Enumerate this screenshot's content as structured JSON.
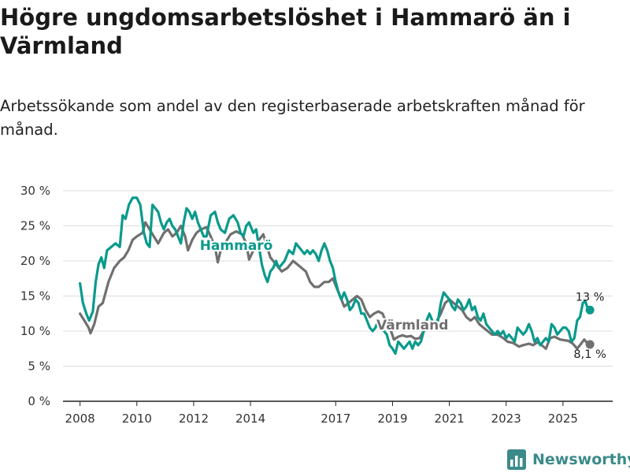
{
  "title": "Högre ungdomsarbetslöshet i Hammarö än i Värmland",
  "subtitle": "Arbetssökande som andel av den registerbaserade arbetskraften månad för månad.",
  "brand": {
    "name": "Newsworthy",
    "icon": "bar-chart-icon"
  },
  "chart_data": {
    "type": "line",
    "ylabel": "",
    "xlabel": "",
    "ylim": [
      0,
      30
    ],
    "xlim": [
      2007.4,
      2026.75
    ],
    "y_ticks": [
      0,
      5,
      10,
      15,
      20,
      25,
      30
    ],
    "y_tick_labels": [
      "0 %",
      "5 %",
      "10 %",
      "15 %",
      "20 %",
      "25 %",
      "30 %"
    ],
    "x_ticks": [
      2008,
      2010,
      2012,
      2014,
      2017,
      2019,
      2021,
      2023,
      2025
    ],
    "x_tick_labels": [
      "2008",
      "2010",
      "2012",
      "2014",
      "2017",
      "2019",
      "2021",
      "2023",
      "2025"
    ],
    "grid": "horizontal",
    "series": [
      {
        "name": "Värmland",
        "color": "#707070",
        "label": "Värmland",
        "end_label": "8,1 %",
        "end_value": 8.1,
        "points": [
          [
            2008.0,
            12.5
          ],
          [
            2008.15,
            11.5
          ],
          [
            2008.3,
            10.5
          ],
          [
            2008.37,
            9.7
          ],
          [
            2008.5,
            11.0
          ],
          [
            2008.65,
            13.5
          ],
          [
            2008.8,
            14.0
          ],
          [
            2009.0,
            17.0
          ],
          [
            2009.2,
            19.0
          ],
          [
            2009.4,
            20.0
          ],
          [
            2009.55,
            20.5
          ],
          [
            2009.7,
            21.5
          ],
          [
            2009.85,
            23.0
          ],
          [
            2010.0,
            23.5
          ],
          [
            2010.2,
            24.0
          ],
          [
            2010.3,
            25.5
          ],
          [
            2010.45,
            24.5
          ],
          [
            2010.6,
            23.5
          ],
          [
            2010.75,
            22.5
          ],
          [
            2010.95,
            24.0
          ],
          [
            2011.1,
            24.5
          ],
          [
            2011.25,
            23.5
          ],
          [
            2011.4,
            24.0
          ],
          [
            2011.55,
            25.0
          ],
          [
            2011.7,
            23.5
          ],
          [
            2011.8,
            21.5
          ],
          [
            2011.95,
            23.0
          ],
          [
            2012.1,
            24.0
          ],
          [
            2012.25,
            24.5
          ],
          [
            2012.45,
            24.8
          ],
          [
            2012.6,
            23.5
          ],
          [
            2012.75,
            22.0
          ],
          [
            2012.85,
            19.8
          ],
          [
            2012.95,
            21.5
          ],
          [
            2013.1,
            22.5
          ],
          [
            2013.3,
            23.8
          ],
          [
            2013.5,
            24.2
          ],
          [
            2013.7,
            23.8
          ],
          [
            2013.85,
            22.5
          ],
          [
            2013.95,
            20.2
          ],
          [
            2014.1,
            21.5
          ],
          [
            2014.3,
            23.0
          ],
          [
            2014.45,
            23.8
          ],
          [
            2014.55,
            22.5
          ],
          [
            2014.7,
            20.5
          ],
          [
            2014.9,
            19.5
          ],
          [
            2015.1,
            18.5
          ],
          [
            2015.3,
            19.0
          ],
          [
            2015.5,
            20.0
          ],
          [
            2015.65,
            19.5
          ],
          [
            2015.8,
            19.0
          ],
          [
            2015.95,
            18.5
          ],
          [
            2016.1,
            17.0
          ],
          [
            2016.25,
            16.3
          ],
          [
            2016.4,
            16.3
          ],
          [
            2016.6,
            17.0
          ],
          [
            2016.75,
            17.0
          ],
          [
            2016.9,
            17.5
          ],
          [
            2017.05,
            16.0
          ],
          [
            2017.2,
            14.5
          ],
          [
            2017.3,
            13.5
          ],
          [
            2017.45,
            14.0
          ],
          [
            2017.6,
            14.5
          ],
          [
            2017.75,
            15.0
          ],
          [
            2017.9,
            14.5
          ],
          [
            2018.05,
            13.0
          ],
          [
            2018.2,
            12.0
          ],
          [
            2018.35,
            12.5
          ],
          [
            2018.5,
            12.8
          ],
          [
            2018.65,
            12.5
          ],
          [
            2018.8,
            11.0
          ],
          [
            2018.95,
            10.0
          ],
          [
            2019.05,
            8.8
          ],
          [
            2019.2,
            9.2
          ],
          [
            2019.35,
            9.4
          ],
          [
            2019.5,
            9.2
          ],
          [
            2019.65,
            9.3
          ],
          [
            2019.8,
            8.9
          ],
          [
            2019.95,
            9.0
          ],
          [
            2020.1,
            10.0
          ],
          [
            2020.3,
            10.5
          ],
          [
            2020.5,
            11.0
          ],
          [
            2020.7,
            12.5
          ],
          [
            2020.85,
            14.0
          ],
          [
            2021.0,
            14.5
          ],
          [
            2021.15,
            14.0
          ],
          [
            2021.3,
            13.5
          ],
          [
            2021.45,
            13.0
          ],
          [
            2021.6,
            12.0
          ],
          [
            2021.75,
            11.5
          ],
          [
            2021.9,
            12.0
          ],
          [
            2022.05,
            11.0
          ],
          [
            2022.2,
            10.5
          ],
          [
            2022.35,
            10.0
          ],
          [
            2022.5,
            9.5
          ],
          [
            2022.7,
            9.5
          ],
          [
            2022.9,
            9.0
          ],
          [
            2023.05,
            8.5
          ],
          [
            2023.25,
            8.3
          ],
          [
            2023.45,
            7.8
          ],
          [
            2023.6,
            8.0
          ],
          [
            2023.8,
            8.2
          ],
          [
            2023.95,
            8.0
          ],
          [
            2024.1,
            8.4
          ],
          [
            2024.25,
            8.0
          ],
          [
            2024.4,
            7.5
          ],
          [
            2024.55,
            9.0
          ],
          [
            2024.7,
            9.2
          ],
          [
            2024.9,
            8.8
          ],
          [
            2025.05,
            8.7
          ],
          [
            2025.2,
            8.6
          ],
          [
            2025.35,
            8.2
          ],
          [
            2025.5,
            7.5
          ],
          [
            2025.6,
            8.0
          ],
          [
            2025.75,
            8.8
          ],
          [
            2025.85,
            8.3
          ],
          [
            2025.95,
            8.1
          ]
        ]
      },
      {
        "name": "Hammarö",
        "color": "#0a9a8c",
        "label": "Hammarö",
        "end_label": "13 %",
        "end_value": 13.0,
        "points": [
          [
            2008.0,
            16.8
          ],
          [
            2008.1,
            14.0
          ],
          [
            2008.22,
            12.5
          ],
          [
            2008.32,
            11.5
          ],
          [
            2008.45,
            12.8
          ],
          [
            2008.55,
            17.0
          ],
          [
            2008.65,
            19.5
          ],
          [
            2008.75,
            20.5
          ],
          [
            2008.85,
            19.0
          ],
          [
            2008.95,
            21.5
          ],
          [
            2009.1,
            22.0
          ],
          [
            2009.25,
            22.5
          ],
          [
            2009.4,
            22.0
          ],
          [
            2009.5,
            26.5
          ],
          [
            2009.6,
            26.0
          ],
          [
            2009.72,
            28.0
          ],
          [
            2009.85,
            29.0
          ],
          [
            2010.0,
            29.0
          ],
          [
            2010.12,
            28.0
          ],
          [
            2010.25,
            24.0
          ],
          [
            2010.35,
            22.5
          ],
          [
            2010.45,
            22.0
          ],
          [
            2010.55,
            28.0
          ],
          [
            2010.65,
            27.5
          ],
          [
            2010.75,
            27.0
          ],
          [
            2010.85,
            25.5
          ],
          [
            2010.95,
            24.5
          ],
          [
            2011.05,
            25.5
          ],
          [
            2011.15,
            26.0
          ],
          [
            2011.25,
            25.0
          ],
          [
            2011.35,
            24.5
          ],
          [
            2011.45,
            23.5
          ],
          [
            2011.55,
            22.5
          ],
          [
            2011.65,
            25.5
          ],
          [
            2011.75,
            27.5
          ],
          [
            2011.85,
            27.0
          ],
          [
            2011.95,
            26.0
          ],
          [
            2012.05,
            27.0
          ],
          [
            2012.15,
            25.5
          ],
          [
            2012.25,
            24.5
          ],
          [
            2012.35,
            23.5
          ],
          [
            2012.45,
            23.5
          ],
          [
            2012.6,
            26.5
          ],
          [
            2012.75,
            27.0
          ],
          [
            2012.85,
            25.5
          ],
          [
            2012.95,
            24.5
          ],
          [
            2013.1,
            24.0
          ],
          [
            2013.25,
            26.0
          ],
          [
            2013.4,
            26.5
          ],
          [
            2013.55,
            25.5
          ],
          [
            2013.65,
            24.0
          ],
          [
            2013.75,
            23.5
          ],
          [
            2013.85,
            25.0
          ],
          [
            2013.95,
            25.5
          ],
          [
            2014.1,
            24.0
          ],
          [
            2014.2,
            24.5
          ],
          [
            2014.3,
            22.0
          ],
          [
            2014.4,
            19.5
          ],
          [
            2014.5,
            18.0
          ],
          [
            2014.6,
            17.0
          ],
          [
            2014.7,
            18.5
          ],
          [
            2014.8,
            19.0
          ],
          [
            2014.9,
            20.0
          ],
          [
            2015.0,
            19.0
          ],
          [
            2015.1,
            19.5
          ],
          [
            2015.2,
            20.0
          ],
          [
            2015.35,
            21.5
          ],
          [
            2015.5,
            21.0
          ],
          [
            2015.6,
            22.5
          ],
          [
            2015.7,
            22.0
          ],
          [
            2015.8,
            21.5
          ],
          [
            2015.9,
            21.0
          ],
          [
            2016.0,
            21.5
          ],
          [
            2016.1,
            21.0
          ],
          [
            2016.2,
            21.5
          ],
          [
            2016.3,
            21.0
          ],
          [
            2016.4,
            20.0
          ],
          [
            2016.5,
            21.5
          ],
          [
            2016.6,
            22.5
          ],
          [
            2016.7,
            21.5
          ],
          [
            2016.8,
            20.0
          ],
          [
            2016.9,
            19.0
          ],
          [
            2017.0,
            17.0
          ],
          [
            2017.1,
            15.5
          ],
          [
            2017.2,
            14.5
          ],
          [
            2017.3,
            15.5
          ],
          [
            2017.4,
            14.5
          ],
          [
            2017.5,
            13.0
          ],
          [
            2017.6,
            13.5
          ],
          [
            2017.7,
            14.5
          ],
          [
            2017.8,
            14.0
          ],
          [
            2017.9,
            12.5
          ],
          [
            2018.0,
            12.5
          ],
          [
            2018.1,
            11.5
          ],
          [
            2018.2,
            10.5
          ],
          [
            2018.3,
            10.0
          ],
          [
            2018.4,
            10.5
          ],
          [
            2018.5,
            11.5
          ],
          [
            2018.6,
            10.5
          ],
          [
            2018.7,
            10.0
          ],
          [
            2018.8,
            9.5
          ],
          [
            2018.9,
            8.0
          ],
          [
            2019.0,
            7.5
          ],
          [
            2019.1,
            6.8
          ],
          [
            2019.2,
            8.5
          ],
          [
            2019.3,
            8.0
          ],
          [
            2019.4,
            7.5
          ],
          [
            2019.5,
            8.0
          ],
          [
            2019.6,
            8.5
          ],
          [
            2019.7,
            7.5
          ],
          [
            2019.8,
            8.5
          ],
          [
            2019.9,
            8.0
          ],
          [
            2020.0,
            8.5
          ],
          [
            2020.1,
            10.0
          ],
          [
            2020.2,
            11.5
          ],
          [
            2020.3,
            12.5
          ],
          [
            2020.4,
            11.5
          ],
          [
            2020.5,
            11.0
          ],
          [
            2020.6,
            11.5
          ],
          [
            2020.7,
            14.0
          ],
          [
            2020.8,
            15.5
          ],
          [
            2020.9,
            15.0
          ],
          [
            2021.0,
            14.5
          ],
          [
            2021.1,
            13.5
          ],
          [
            2021.2,
            13.0
          ],
          [
            2021.3,
            14.5
          ],
          [
            2021.4,
            14.0
          ],
          [
            2021.5,
            13.0
          ],
          [
            2021.6,
            13.5
          ],
          [
            2021.7,
            14.5
          ],
          [
            2021.8,
            13.0
          ],
          [
            2021.9,
            13.5
          ],
          [
            2022.0,
            12.0
          ],
          [
            2022.1,
            11.5
          ],
          [
            2022.2,
            12.5
          ],
          [
            2022.3,
            11.0
          ],
          [
            2022.4,
            10.5
          ],
          [
            2022.5,
            10.0
          ],
          [
            2022.6,
            9.5
          ],
          [
            2022.7,
            10.0
          ],
          [
            2022.8,
            9.5
          ],
          [
            2022.9,
            10.0
          ],
          [
            2023.0,
            9.0
          ],
          [
            2023.1,
            9.5
          ],
          [
            2023.2,
            9.0
          ],
          [
            2023.3,
            8.5
          ],
          [
            2023.4,
            10.5
          ],
          [
            2023.5,
            10.0
          ],
          [
            2023.6,
            9.5
          ],
          [
            2023.7,
            10.0
          ],
          [
            2023.8,
            11.0
          ],
          [
            2023.9,
            10.0
          ],
          [
            2024.0,
            8.5
          ],
          [
            2024.1,
            9.0
          ],
          [
            2024.2,
            8.0
          ],
          [
            2024.3,
            8.5
          ],
          [
            2024.4,
            9.0
          ],
          [
            2024.5,
            8.5
          ],
          [
            2024.6,
            11.0
          ],
          [
            2024.7,
            10.5
          ],
          [
            2024.8,
            9.5
          ],
          [
            2024.9,
            10.0
          ],
          [
            2025.0,
            10.5
          ],
          [
            2025.1,
            10.5
          ],
          [
            2025.2,
            10.0
          ],
          [
            2025.3,
            8.5
          ],
          [
            2025.4,
            9.0
          ],
          [
            2025.5,
            11.5
          ],
          [
            2025.6,
            12.0
          ],
          [
            2025.7,
            14.0
          ],
          [
            2025.78,
            14.3
          ],
          [
            2025.85,
            13.5
          ],
          [
            2025.95,
            13.0
          ]
        ]
      }
    ]
  }
}
